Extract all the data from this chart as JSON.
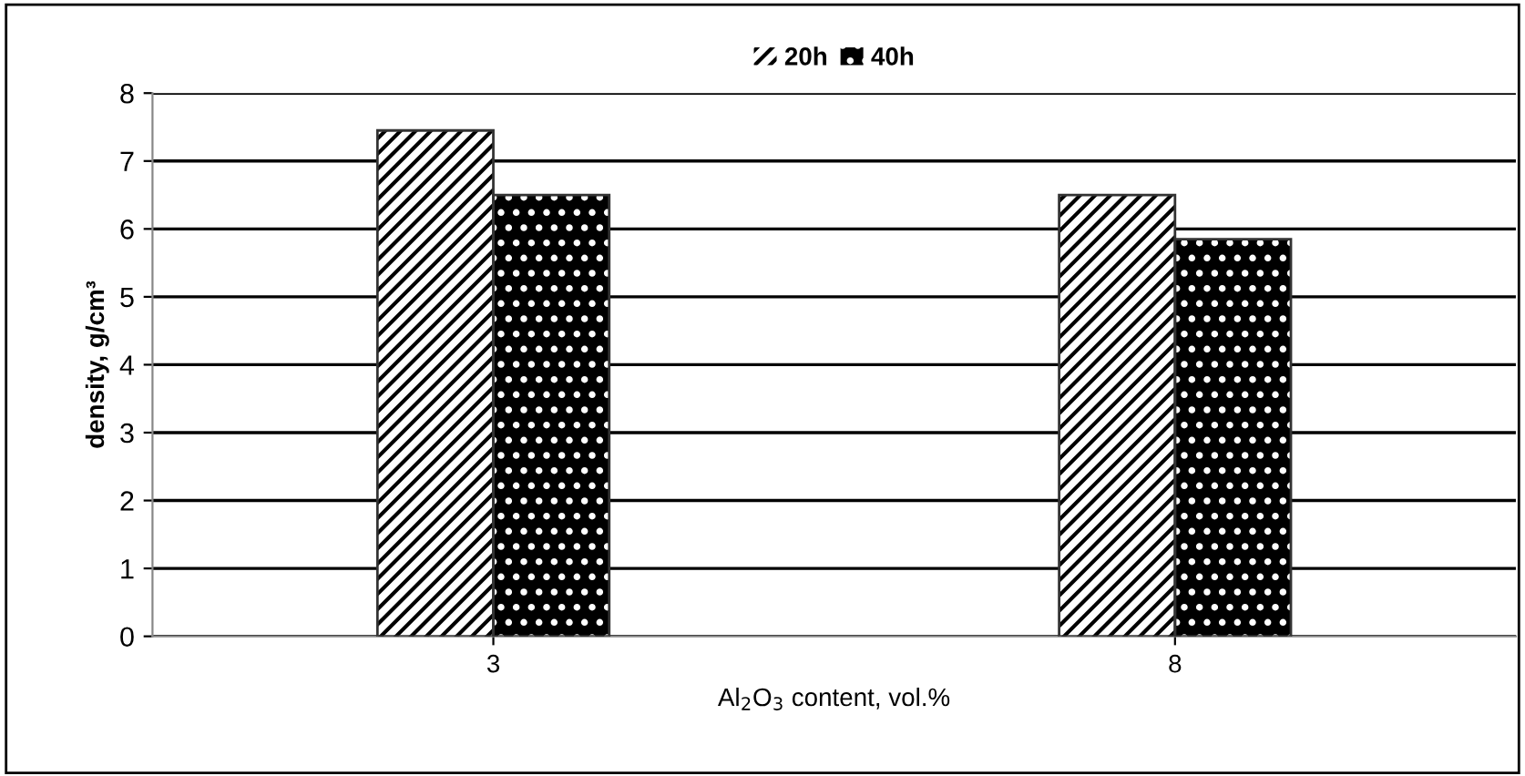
{
  "chart_data": {
    "type": "bar",
    "xlabel": "Al$_{2}$O$_{3}$ content, vol.%",
    "ylabel": "density, g/cm³",
    "categories": [
      "3",
      "8"
    ],
    "series": [
      {
        "name": "20h",
        "color": "#ffffff",
        "values": [
          7.45,
          6.5
        ]
      },
      {
        "name": "40h",
        "color": "#000000",
        "values": [
          6.5,
          5.85
        ]
      }
    ],
    "ylim": [
      0,
      8
    ],
    "yticks": [
      0,
      1,
      2,
      3,
      4,
      5,
      6,
      7,
      8
    ],
    "grid": "y",
    "legend": "top"
  }
}
